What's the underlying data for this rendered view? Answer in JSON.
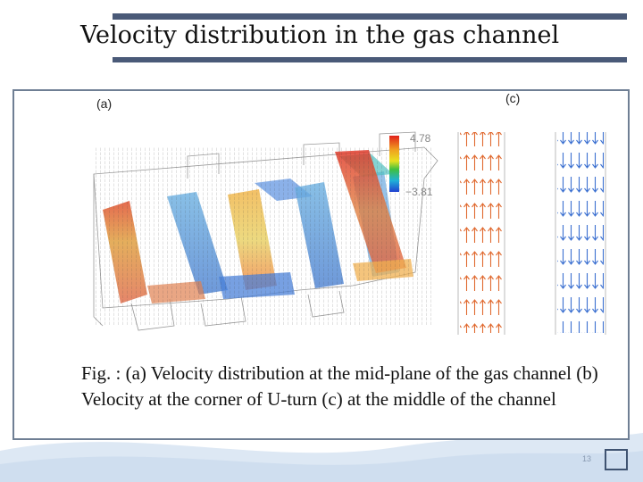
{
  "slide": {
    "title": "Velocity distribution in the gas channel",
    "label_a": "(a)",
    "label_c": "(c)",
    "colorbar_max": "4.78",
    "colorbar_min": "−3.81",
    "caption": "Fig. : (a) Velocity distribution at the mid-plane of the gas channel (b) Velocity at the corner of U-turn (c) at the middle of the channel",
    "page_number": "13"
  },
  "colors": {
    "accent": "#4a5a78",
    "frame": "#6f7f94",
    "wave": "#cfdeef"
  }
}
